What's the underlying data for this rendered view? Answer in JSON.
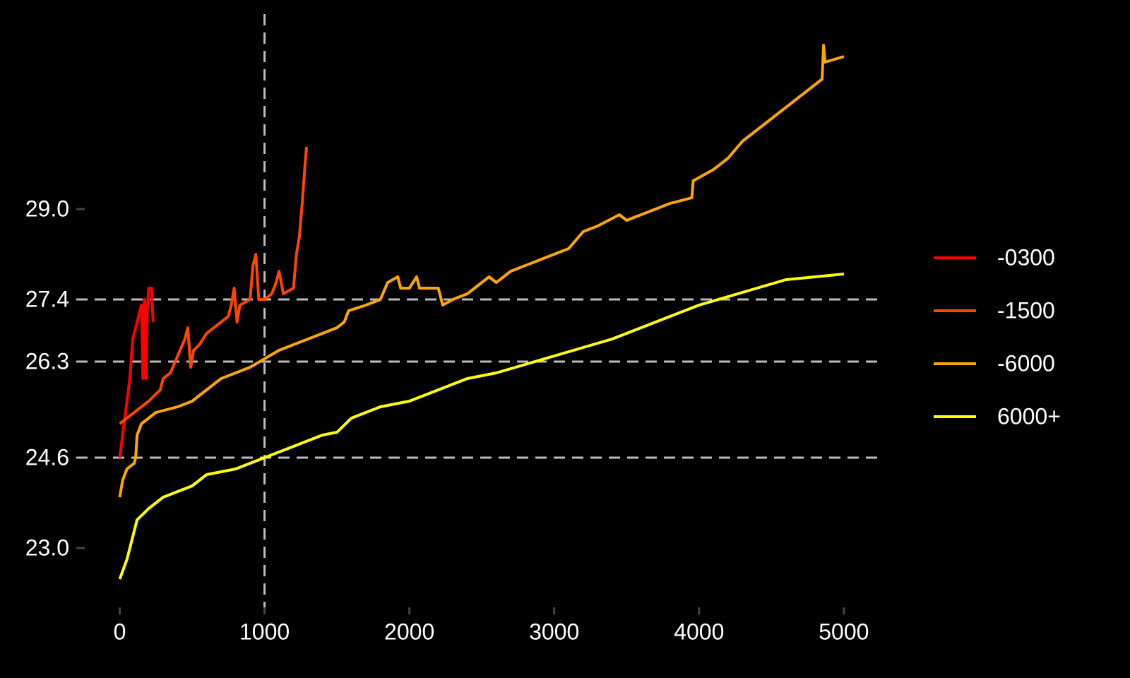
{
  "chart_data": {
    "type": "line",
    "background": "#000000",
    "xlim": [
      -300,
      5230
    ],
    "ylim": [
      22.2,
      32.2
    ],
    "xticks": [
      0,
      1000,
      2000,
      3000,
      4000,
      5000
    ],
    "yticks": [
      {
        "value": 23,
        "label": "23.0"
      },
      24.6,
      26.3,
      27.4,
      {
        "value": 29,
        "label": "29.0"
      }
    ],
    "hlines": [
      24.6,
      26.3,
      27.4
    ],
    "vlines": [
      1000
    ],
    "reference_line_color": "#bbbbbb",
    "legend": "right",
    "series": [
      {
        "name": "-0300",
        "color": "#ff0000",
        "x": [
          0,
          10,
          30,
          50,
          70,
          90,
          110,
          130,
          150,
          160,
          170,
          180,
          190,
          200,
          220,
          230
        ],
        "values": [
          24.6,
          24.8,
          25.2,
          25.6,
          26.0,
          26.7,
          26.9,
          27.1,
          27.3,
          26.0,
          27.4,
          26.0,
          27.2,
          27.6,
          27.6,
          27.0
        ]
      },
      {
        "name": "-1500",
        "color": "#ff4500",
        "x": [
          0,
          50,
          100,
          200,
          280,
          300,
          350,
          400,
          450,
          470,
          490,
          510,
          550,
          600,
          650,
          700,
          750,
          770,
          790,
          810,
          830,
          900,
          920,
          940,
          960,
          1000,
          1050,
          1080,
          1100,
          1130,
          1200,
          1220,
          1240,
          1260,
          1280,
          1290
        ],
        "values": [
          25.2,
          25.3,
          25.4,
          25.6,
          25.8,
          26.0,
          26.1,
          26.4,
          26.7,
          26.9,
          26.2,
          26.5,
          26.6,
          26.8,
          26.9,
          27.0,
          27.1,
          27.3,
          27.6,
          27.0,
          27.3,
          27.4,
          28.0,
          28.2,
          27.4,
          27.4,
          27.5,
          27.7,
          27.9,
          27.5,
          27.6,
          28.2,
          28.5,
          29.1,
          29.8,
          30.1
        ]
      },
      {
        "name": "-6000",
        "color": "#ffa500",
        "x": [
          0,
          20,
          50,
          100,
          110,
          120,
          150,
          250,
          400,
          500,
          600,
          700,
          800,
          900,
          1000,
          1100,
          1200,
          1300,
          1400,
          1500,
          1550,
          1580,
          1700,
          1800,
          1850,
          1920,
          1940,
          2000,
          2050,
          2070,
          2200,
          2230,
          2300,
          2400,
          2500,
          2550,
          2600,
          2700,
          2900,
          3000,
          3100,
          3200,
          3300,
          3450,
          3500,
          3600,
          3800,
          3950,
          3960,
          4100,
          4200,
          4300,
          4400,
          4500,
          4600,
          4700,
          4800,
          4850,
          4860,
          4870,
          5000
        ],
        "values": [
          23.9,
          24.2,
          24.4,
          24.5,
          24.6,
          25.0,
          25.2,
          25.4,
          25.5,
          25.6,
          25.8,
          26.0,
          26.1,
          26.2,
          26.35,
          26.5,
          26.6,
          26.7,
          26.8,
          26.9,
          27.0,
          27.2,
          27.3,
          27.4,
          27.7,
          27.8,
          27.6,
          27.6,
          27.8,
          27.6,
          27.6,
          27.3,
          27.4,
          27.5,
          27.7,
          27.8,
          27.7,
          27.9,
          28.1,
          28.2,
          28.3,
          28.6,
          28.7,
          28.9,
          28.8,
          28.9,
          29.1,
          29.2,
          29.5,
          29.7,
          29.9,
          30.2,
          30.4,
          30.6,
          30.8,
          31.0,
          31.2,
          31.3,
          31.9,
          31.6,
          31.7
        ]
      },
      {
        "name": "6000+",
        "color": "#ffff00",
        "x": [
          0,
          50,
          100,
          120,
          200,
          300,
          400,
          500,
          600,
          700,
          800,
          900,
          1000,
          1200,
          1300,
          1400,
          1500,
          1600,
          1800,
          2000,
          2100,
          2300,
          2400,
          2600,
          2800,
          3000,
          3200,
          3400,
          3600,
          3800,
          4000,
          4200,
          4400,
          4600,
          4800,
          5000
        ],
        "values": [
          22.45,
          22.8,
          23.3,
          23.5,
          23.7,
          23.9,
          24.0,
          24.1,
          24.3,
          24.35,
          24.4,
          24.5,
          24.6,
          24.8,
          24.9,
          25.0,
          25.05,
          25.3,
          25.5,
          25.6,
          25.7,
          25.9,
          26.0,
          26.1,
          26.25,
          26.4,
          26.55,
          26.7,
          26.9,
          27.1,
          27.3,
          27.45,
          27.6,
          27.75,
          27.8,
          27.85
        ]
      }
    ]
  }
}
